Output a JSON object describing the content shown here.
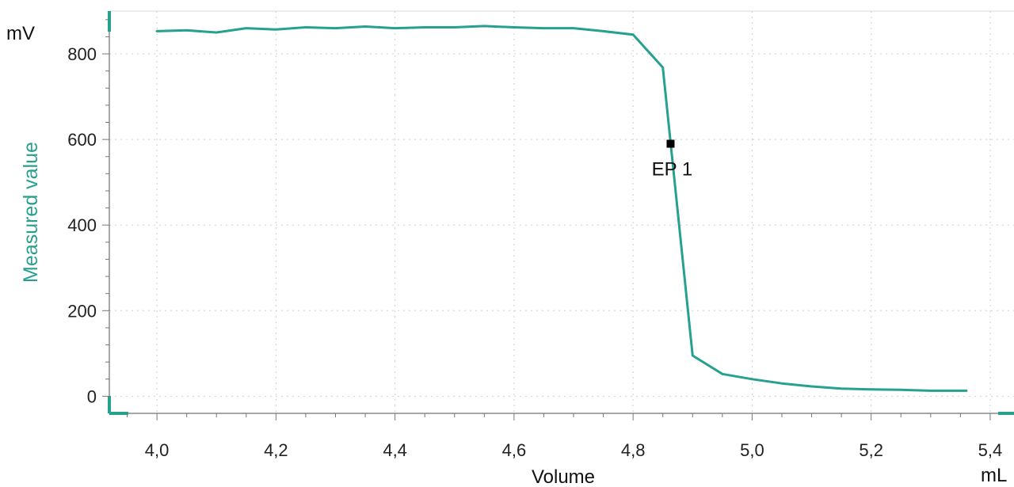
{
  "chart_data": {
    "type": "line",
    "xlabel": "Volume",
    "ylabel": "Measured value",
    "x_unit": "mL",
    "y_unit": "mV",
    "xlim": [
      3.92,
      5.44
    ],
    "ylim": [
      -40,
      900
    ],
    "x_ticks": [
      4.0,
      4.2,
      4.4,
      4.6,
      4.8,
      5.0,
      5.2,
      5.4
    ],
    "x_tick_labels": [
      "4,0",
      "4,2",
      "4,4",
      "4,6",
      "4,8",
      "5,0",
      "5,2",
      "5,4"
    ],
    "y_ticks": [
      0,
      200,
      400,
      600,
      800
    ],
    "y_tick_labels": [
      "0",
      "200",
      "400",
      "600",
      "800"
    ],
    "grid": true,
    "series_color": "#26a08f",
    "series": [
      {
        "x": [
          4.0,
          4.05,
          4.1,
          4.15,
          4.2,
          4.25,
          4.3,
          4.35,
          4.4,
          4.45,
          4.5,
          4.55,
          4.6,
          4.65,
          4.7,
          4.75,
          4.8,
          4.85,
          4.9,
          4.95,
          5.0,
          5.05,
          5.1,
          5.15,
          5.2,
          5.25,
          5.3,
          5.36
        ],
        "y": [
          853,
          855,
          850,
          860,
          857,
          862,
          860,
          864,
          860,
          862,
          862,
          865,
          862,
          860,
          860,
          853,
          845,
          768,
          95,
          52,
          40,
          30,
          23,
          18,
          16,
          15,
          13,
          13
        ]
      }
    ],
    "annotations": [
      {
        "label": "EP 1",
        "x": 4.863,
        "y": 590,
        "color": "#000000"
      }
    ]
  }
}
